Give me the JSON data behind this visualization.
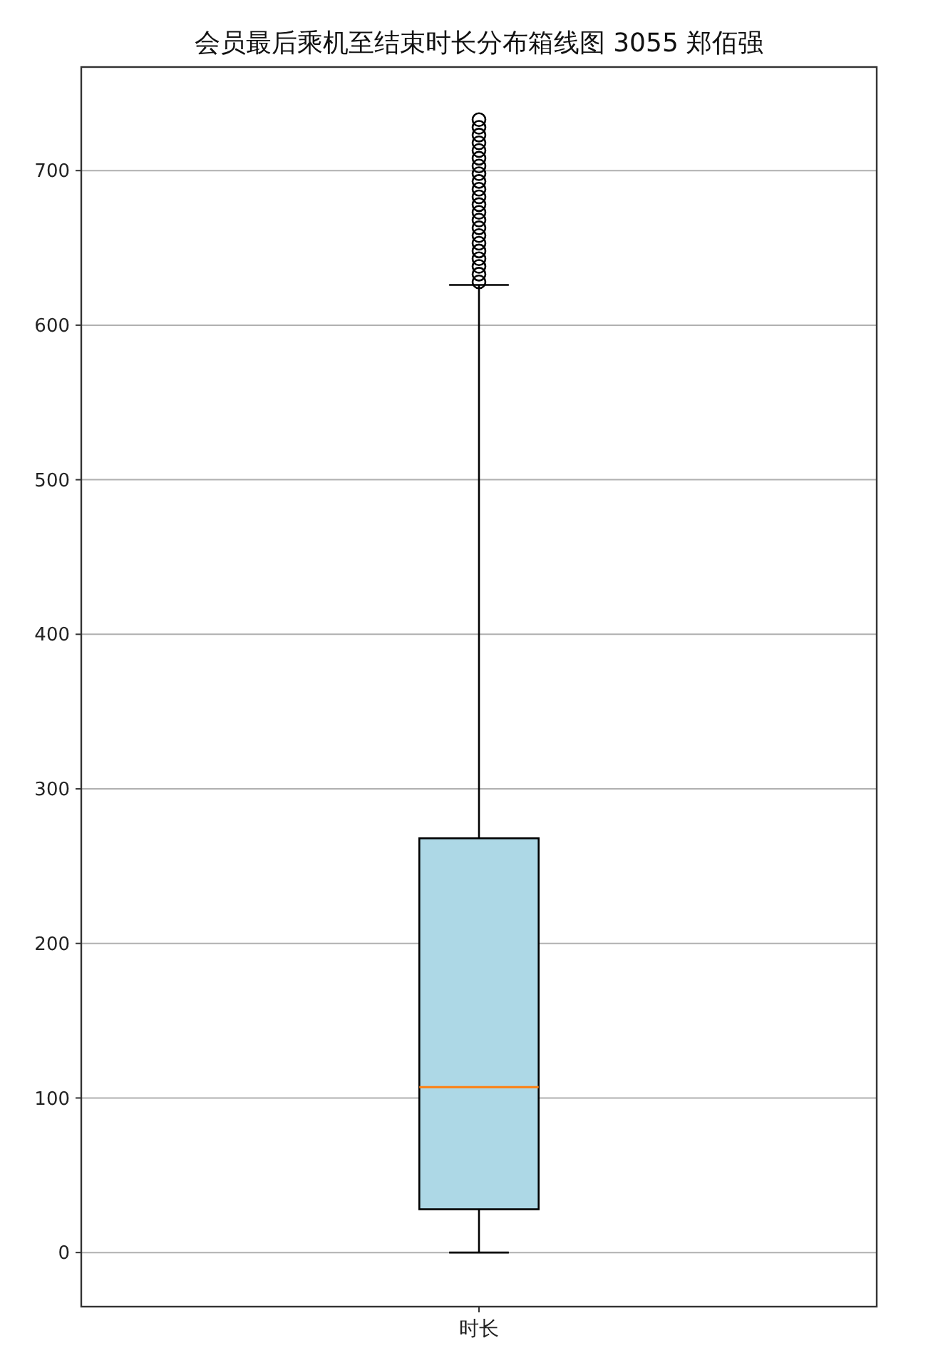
{
  "chart_data": {
    "type": "box",
    "title": "会员最后乘机至结束时长分布箱线图 3055 郑佰强",
    "categories": [
      "时长"
    ],
    "boxes": [
      {
        "low": 0,
        "q1": 28,
        "median": 107,
        "q3": 268,
        "high": 626,
        "outliers": [
          628,
          633,
          638,
          643,
          648,
          653,
          658,
          663,
          668,
          673,
          678,
          683,
          688,
          693,
          698,
          703,
          708,
          713,
          718,
          723,
          728,
          733
        ]
      }
    ],
    "color": "#add8e6",
    "ylim": [
      -35,
      767
    ],
    "yticks": [
      0,
      100,
      200,
      300,
      400,
      500,
      600,
      700
    ],
    "grid": "y"
  }
}
